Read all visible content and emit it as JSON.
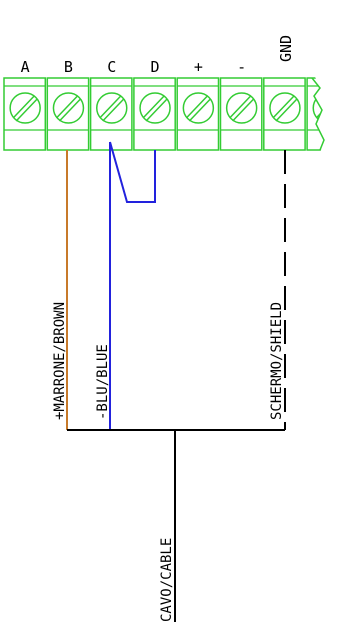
{
  "terminals": [
    "A",
    "B",
    "C",
    "D",
    "+",
    "-",
    "GND"
  ],
  "wires": {
    "brown": "+MARRONE/BROWN",
    "blue": "-BLU/BLUE",
    "shield": "SCHERMO/SHIELD",
    "cable": "CAVO/CABLE"
  }
}
